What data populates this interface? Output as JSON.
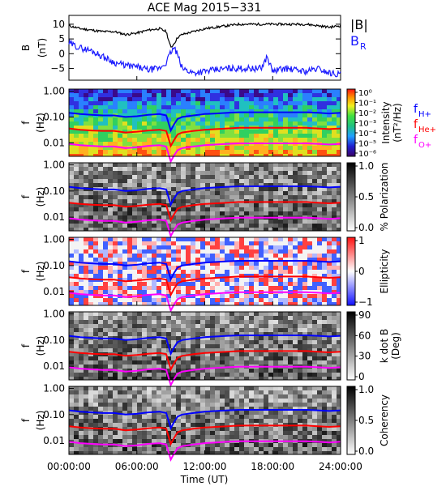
{
  "title": "ACE Mag 2015−331",
  "xaxis": {
    "label": "Time (UT)",
    "ticks": [
      "00:00:00",
      "06:00:00",
      "12:00:00",
      "18:00:00",
      "24:00:00"
    ],
    "range_hours": [
      0,
      24
    ]
  },
  "colors": {
    "B_total": "#000000",
    "B_R": "#1a1aff",
    "f_H": "#0000ff",
    "f_He": "#ff0000",
    "f_O": "#ff00ff",
    "background": "#ffffff"
  },
  "chart_data": [
    {
      "type": "line",
      "ylabel_top": "B",
      "ylabel_bottom": "(nT)",
      "ylim": [
        -9,
        13
      ],
      "yticks": [
        "10",
        "5",
        "0",
        "−5"
      ],
      "ytick_values": [
        10,
        5,
        0,
        -5
      ],
      "legend": [
        "|B|",
        "B",
        "R"
      ],
      "series": [
        {
          "name": "|B|",
          "color": "#000000",
          "x": [
            0,
            1,
            2,
            3,
            4,
            5,
            6,
            7,
            8,
            8.6,
            9,
            9.3,
            9.6,
            10,
            11,
            12,
            13,
            14,
            15,
            16,
            17,
            18,
            19,
            20,
            21,
            22,
            23,
            24
          ],
          "y": [
            9.5,
            8.5,
            8.0,
            7.5,
            7.5,
            6.5,
            7.0,
            8.0,
            8.5,
            7.5,
            2.0,
            3.5,
            5.5,
            6.5,
            7.5,
            8.5,
            9.0,
            9.5,
            10.0,
            10.0,
            10.0,
            10.0,
            10.0,
            10.0,
            10.0,
            9.5,
            9.0,
            9.5
          ]
        },
        {
          "name": "B",
          "color": "#1a1aff",
          "x": [
            0,
            1,
            2,
            3,
            4,
            5,
            6,
            7,
            8,
            8.6,
            9,
            9.3,
            9.6,
            10,
            11,
            12,
            13,
            14,
            15,
            16,
            17,
            17.5,
            18,
            19,
            20,
            21,
            22,
            23,
            24
          ],
          "y": [
            3.5,
            2.0,
            1.0,
            -1.0,
            -3.0,
            -4.0,
            -4.5,
            -5.5,
            -5.0,
            -3.0,
            0.5,
            2.0,
            -0.5,
            -5.0,
            -6.5,
            -6.0,
            -5.5,
            -5.0,
            -5.0,
            -5.0,
            -5.0,
            -1.0,
            -6.0,
            -5.0,
            -5.5,
            -6.0,
            -5.0,
            -6.5,
            -7.0
          ]
        }
      ]
    },
    {
      "type": "heatmap",
      "ylabel_top": "f",
      "ylabel_bottom": "(Hz)",
      "scale": "log",
      "ylim": [
        0.003,
        1.2
      ],
      "yticks": [
        "1.00",
        "0.10",
        "0.01"
      ],
      "ytick_values": [
        1,
        0.1,
        0.01
      ],
      "colorbar": {
        "title": "Intensity",
        "unit": "(nT²/Hz)",
        "ticks": [
          "10⁰",
          "10⁻¹",
          "10⁻²",
          "10⁻³",
          "10⁻⁴",
          "10⁻⁵",
          "10⁻⁶"
        ],
        "palette": "rainbow"
      },
      "legend": [
        {
          "label": "f",
          "sub": "H+",
          "color": "#0000ff"
        },
        {
          "label": "f",
          "sub": "He+",
          "color": "#ff0000"
        },
        {
          "label": "f",
          "sub": "O+",
          "color": "#ff00ff"
        }
      ]
    },
    {
      "type": "heatmap",
      "ylabel_top": "f",
      "ylabel_bottom": "(Hz)",
      "scale": "log",
      "ylim": [
        0.003,
        1.2
      ],
      "yticks": [
        "1.00",
        "0.10",
        "0.01"
      ],
      "ytick_values": [
        1,
        0.1,
        0.01
      ],
      "colorbar": {
        "title": "% Polarization",
        "ticks": [
          "1.0",
          "0.5",
          "0.0"
        ],
        "palette": "gray"
      }
    },
    {
      "type": "heatmap",
      "ylabel_top": "f",
      "ylabel_bottom": "(Hz)",
      "scale": "log",
      "ylim": [
        0.003,
        1.2
      ],
      "yticks": [
        "1.00",
        "0.10",
        "0.01"
      ],
      "ytick_values": [
        1,
        0.1,
        0.01
      ],
      "colorbar": {
        "title": "Ellipticity",
        "ticks": [
          "1",
          "0",
          "−1"
        ],
        "palette": "bluewhitered"
      }
    },
    {
      "type": "heatmap",
      "ylabel_top": "f",
      "ylabel_bottom": "(Hz)",
      "scale": "log",
      "ylim": [
        0.003,
        1.2
      ],
      "yticks": [
        "1.00",
        "0.10",
        "0.01"
      ],
      "ytick_values": [
        1,
        0.1,
        0.01
      ],
      "colorbar": {
        "title": "k dot B",
        "unit": "(Deg)",
        "ticks": [
          "90",
          "60",
          "30",
          "0"
        ],
        "palette": "gray"
      }
    },
    {
      "type": "heatmap",
      "ylabel_top": "f",
      "ylabel_bottom": "(Hz)",
      "scale": "log",
      "ylim": [
        0.003,
        1.2
      ],
      "yticks": [
        "1.00",
        "0.10",
        "0.01"
      ],
      "ytick_values": [
        1,
        0.1,
        0.01
      ],
      "colorbar": {
        "title": "Coherency",
        "ticks": [
          "1.0",
          "0.5",
          "0.0"
        ],
        "palette": "gray"
      }
    }
  ],
  "gyrofrequency_lines": {
    "x": [
      0,
      1,
      2,
      3,
      4,
      5,
      6,
      7,
      8,
      8.6,
      9,
      9.3,
      9.6,
      10,
      11,
      12,
      13,
      14,
      15,
      16,
      17,
      18,
      19,
      20,
      21,
      22,
      23,
      24
    ],
    "f_H+": [
      0.145,
      0.13,
      0.122,
      0.115,
      0.115,
      0.1,
      0.107,
      0.122,
      0.13,
      0.115,
      0.03,
      0.053,
      0.084,
      0.1,
      0.115,
      0.13,
      0.137,
      0.145,
      0.152,
      0.152,
      0.152,
      0.152,
      0.152,
      0.152,
      0.152,
      0.145,
      0.137,
      0.145
    ],
    "f_He+": [
      0.036,
      0.032,
      0.03,
      0.029,
      0.029,
      0.025,
      0.027,
      0.03,
      0.032,
      0.029,
      0.0076,
      0.013,
      0.021,
      0.025,
      0.029,
      0.032,
      0.034,
      0.036,
      0.038,
      0.038,
      0.038,
      0.038,
      0.038,
      0.038,
      0.038,
      0.036,
      0.034,
      0.036
    ],
    "f_O+": [
      0.0091,
      0.0081,
      0.0076,
      0.0072,
      0.0072,
      0.0062,
      0.0067,
      0.0076,
      0.0081,
      0.0072,
      0.0019,
      0.0033,
      0.0052,
      0.0062,
      0.0072,
      0.0081,
      0.0086,
      0.0091,
      0.0095,
      0.0095,
      0.0095,
      0.0095,
      0.0095,
      0.0095,
      0.0095,
      0.0091,
      0.0086,
      0.0091
    ]
  }
}
